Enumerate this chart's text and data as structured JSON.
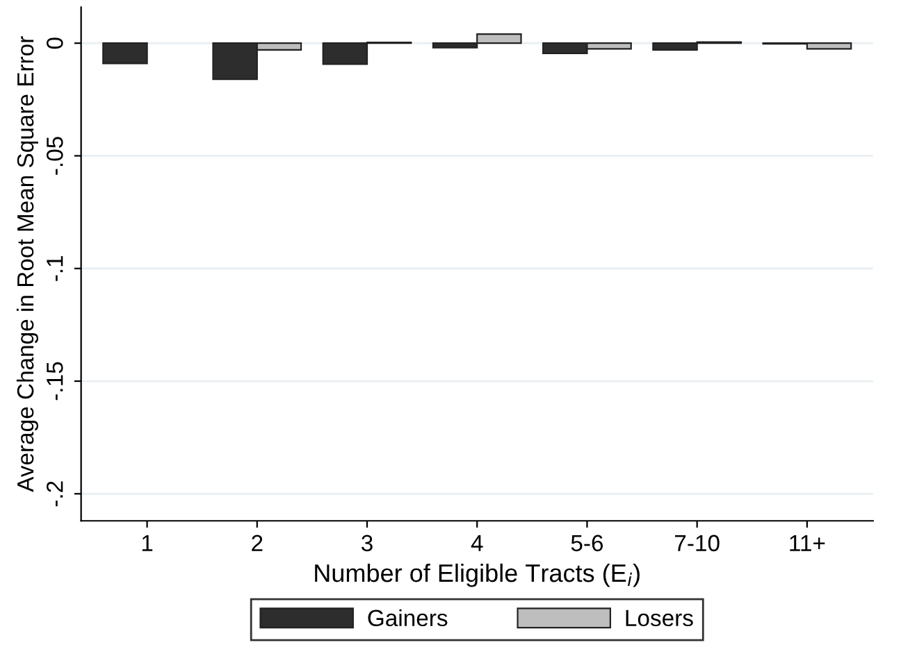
{
  "chart_data": {
    "type": "bar",
    "xlabel": "Number of Eligible Tracts (E$_{i}$)",
    "ylabel": "Average Change in Root Mean Square Error",
    "categories": [
      "1",
      "2",
      "3",
      "4",
      "5-6",
      "7-10",
      "11+"
    ],
    "series": [
      {
        "name": "Gainers",
        "color": "#2d2d2d",
        "values": [
          -0.009,
          -0.016,
          -0.0093,
          -0.002,
          -0.0045,
          -0.003,
          -0.0003
        ]
      },
      {
        "name": "Losers",
        "color": "#bebebe",
        "values": [
          null,
          -0.003,
          0.0003,
          0.004,
          -0.0025,
          0.0005,
          -0.0025
        ]
      }
    ],
    "ylim": [
      -0.212,
      0.016
    ],
    "yticks": [
      {
        "value": 0,
        "label": "0"
      },
      {
        "value": -0.05,
        "label": "-.05"
      },
      {
        "value": -0.1,
        "label": "-.1"
      },
      {
        "value": -0.15,
        "label": "-.15"
      },
      {
        "value": -0.2,
        "label": "-.2"
      }
    ],
    "grid": "y",
    "legend": "bottom"
  }
}
